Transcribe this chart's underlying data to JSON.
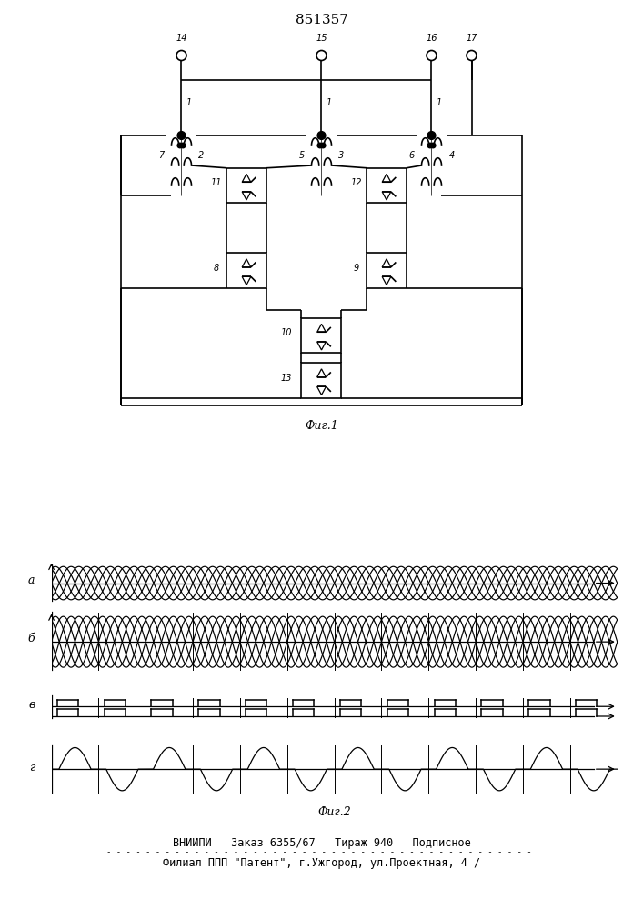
{
  "title": "851357",
  "fig1_label": "Фиг.1",
  "fig2_label": "Фиг.2",
  "footer_line1": "ВНИИПИ   Заказ 6355/67   Тираж 940   Подписное",
  "footer_line2": "Филиал ППП \"Патент\", г.Ужгород, ул.Проектная, 4 /",
  "waveform_labels": [
    "a",
    "б",
    "в",
    "г"
  ],
  "bg": "#ffffff"
}
